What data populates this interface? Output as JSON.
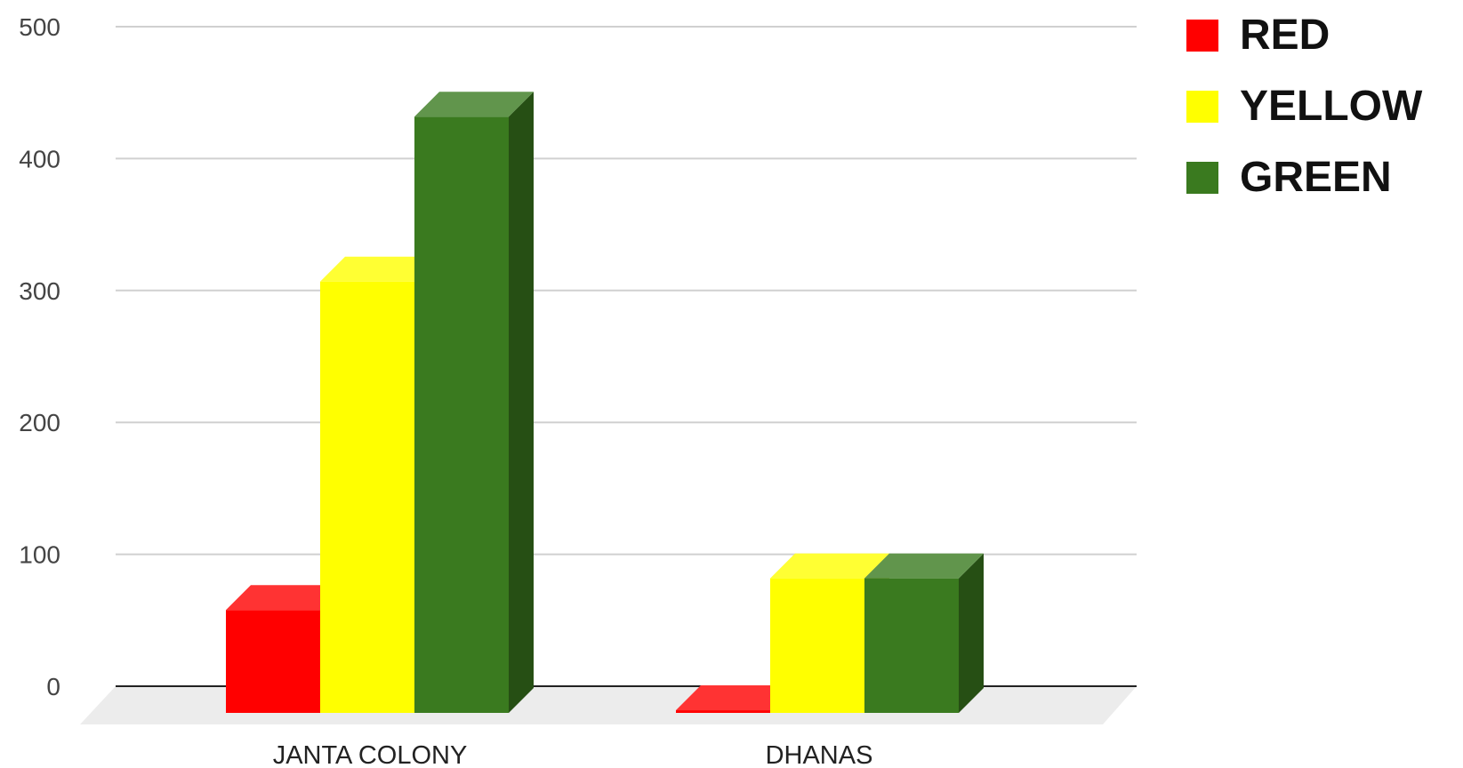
{
  "chart_data": {
    "type": "bar",
    "categories": [
      "JANTA COLONY",
      "DHANAS"
    ],
    "series": [
      {
        "name": "RED",
        "color": "#ff0000",
        "values": [
          78,
          2
        ]
      },
      {
        "name": "YELLOW",
        "color": "#ffff00",
        "values": [
          327,
          102
        ]
      },
      {
        "name": "GREEN",
        "color": "#3a7a1f",
        "values": [
          452,
          102
        ]
      }
    ],
    "title": "",
    "xlabel": "",
    "ylabel": "",
    "ylim": [
      0,
      500
    ],
    "yticks": [
      "0",
      "100",
      "200",
      "300",
      "400",
      "500"
    ],
    "grid": true,
    "legend_position": "top-right",
    "style": "3d"
  }
}
